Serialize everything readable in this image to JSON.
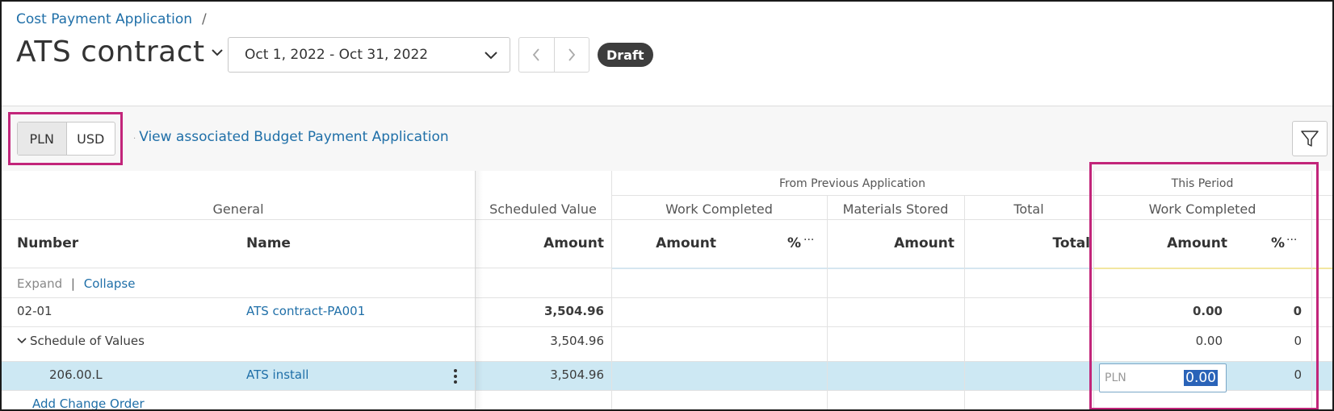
{
  "breadcrumb": {
    "parent": "Cost Payment Application",
    "separator": "/"
  },
  "header": {
    "title": "ATS contract",
    "date_range": "Oct 1, 2022 - Oct 31, 2022",
    "status": "Draft"
  },
  "toolbar": {
    "currencies": [
      "PLN",
      "USD"
    ],
    "active_currency": "PLN",
    "budget_link": "View associated Budget Payment Application"
  },
  "table": {
    "group_headers": {
      "from_previous": "From Previous Application",
      "this_period": "This Period"
    },
    "section_headers": {
      "general": "General",
      "scheduled_value": "Scheduled Value",
      "work_completed_prev": "Work Completed",
      "materials_stored": "Materials Stored",
      "total": "Total",
      "work_completed_period": "Work Completed"
    },
    "columns": {
      "number": "Number",
      "name": "Name",
      "sv_amount": "Amount",
      "wc_amount": "Amount",
      "wc_pct": "%",
      "ms_amount": "Amount",
      "total": "Total",
      "tp_amount": "Amount",
      "tp_pct": "%",
      "more": "···"
    },
    "controls": {
      "expand": "Expand",
      "collapse": "Collapse"
    },
    "rows": [
      {
        "number": "02-01",
        "name": "ATS contract-PA001",
        "sv": "3,504.96",
        "tp_amount": "0.00",
        "tp_pct": "0"
      },
      {
        "number": "Schedule of Values",
        "sv": "3,504.96",
        "tp_amount": "0.00",
        "tp_pct": "0"
      },
      {
        "number": "206.00.L",
        "name": "ATS install",
        "sv": "3,504.96",
        "tp_currency": "PLN",
        "tp_amount": "0.00",
        "tp_pct": "0"
      }
    ],
    "add_change_order": "Add Change Order"
  },
  "colors": {
    "link": "#1f6fa8",
    "highlight_border": "#c2257a",
    "selected_row": "#cde8f3",
    "draft_badge": "#3d3d3d"
  }
}
